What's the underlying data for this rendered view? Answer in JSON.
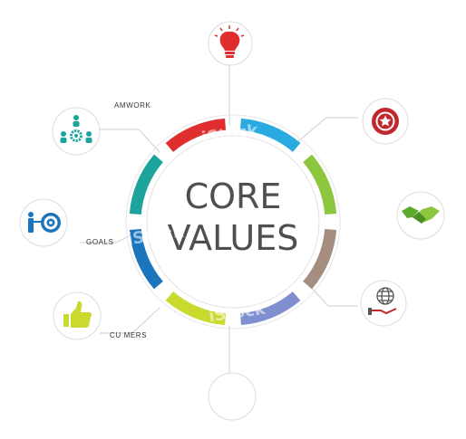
{
  "center": {
    "line1": "CORE",
    "line2": "VALUES"
  },
  "labels": {
    "teamwork": "AMWORK",
    "goals": "GOALS",
    "customers": "CU  MERS"
  },
  "watermarks": [
    "iStock",
    "iStock",
    "iStock"
  ],
  "ring_colors": [
    "#29ABE2",
    "#8DC63F",
    "#A58E80",
    "#7F8FD0",
    "#C9D92E",
    "#1B75BC",
    "#1BA39C",
    "#E02D2D"
  ],
  "icons": [
    {
      "name": "brain-lightbulb-icon",
      "color": "#E02D2D"
    },
    {
      "name": "star-badge-icon",
      "color": "#C1272D"
    },
    {
      "name": "handshake-icon",
      "color": "#5BAA2E"
    },
    {
      "name": "globe-hand-icon",
      "color": "#555555"
    },
    {
      "name": "thumbs-up-icon",
      "color": "#C9D92E"
    },
    {
      "name": "target-person-icon",
      "color": "#1B75BC"
    },
    {
      "name": "team-gears-icon",
      "color": "#1BA39C"
    }
  ]
}
